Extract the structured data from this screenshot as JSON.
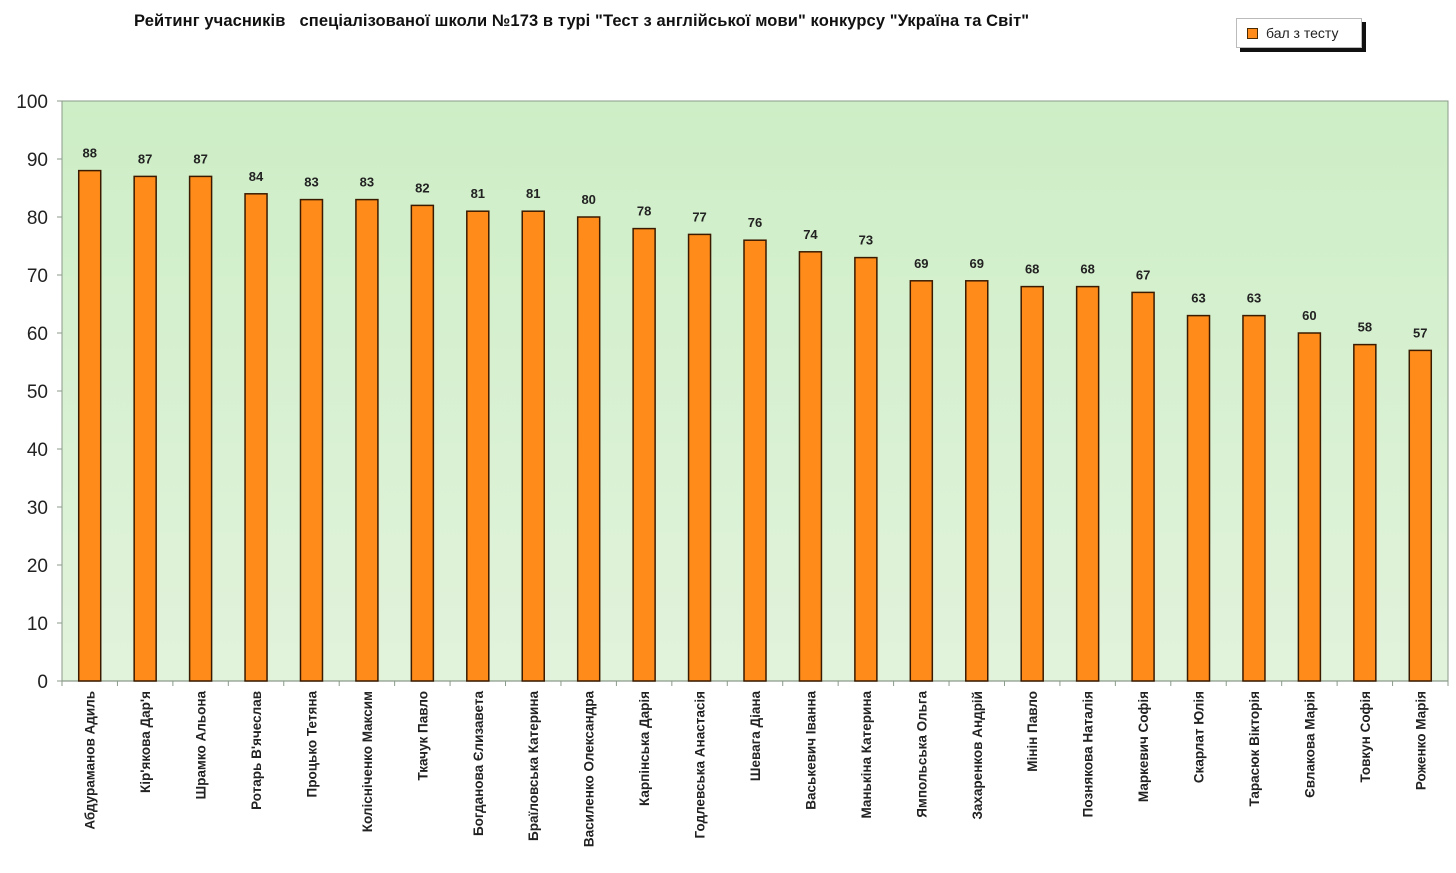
{
  "chart_data": {
    "type": "bar",
    "title": "Рейтинг учасників   спеціалізованої школи №173 в турі \"Тест з англійської мови\" конкурсу \"Україна та Світ\"",
    "xlabel": "",
    "ylabel": "",
    "ylim": [
      0,
      100
    ],
    "yticks": [
      0,
      10,
      20,
      30,
      40,
      50,
      60,
      70,
      80,
      90,
      100
    ],
    "grid": false,
    "legend": {
      "position": "top-right",
      "entries": [
        "бал з тесту"
      ]
    },
    "categories": [
      "Абдураманов Адиль",
      "Кір'якова Дар'я",
      "Шрамко Альона",
      "Ротарь В'ячеслав",
      "Процько Тетяна",
      "Колісніченко Максим",
      "Ткачук Павло",
      "Богданова Єлизавета",
      "Браїловська Катерина",
      "Василенко Олександра",
      "Карпінська Дарія",
      "Годлевська Анастасія",
      "Шевага Діана",
      "Васькевич Іванна",
      "Манькіна Катерина",
      "Ямпольська Ольга",
      "Захаренков Андрій",
      "Мінін Павло",
      "Познякова Наталія",
      "Маркевич Софія",
      "Скарлат Юлія",
      "Тарасюк Вікторія",
      "Євлакова Марія",
      "Товкун Софія",
      "Роженко Марія"
    ],
    "series": [
      {
        "name": "бал з тесту",
        "color": "#ff8c1a",
        "values": [
          88,
          87,
          87,
          84,
          83,
          83,
          82,
          81,
          81,
          80,
          78,
          77,
          76,
          74,
          73,
          69,
          69,
          68,
          68,
          67,
          63,
          63,
          60,
          58,
          57
        ]
      }
    ],
    "colors": {
      "plot_background": "#d6f0cf",
      "bar_fill": "#ff8c1a",
      "bar_stroke": "#3a1a00",
      "axis": "#8a9a8a"
    }
  }
}
